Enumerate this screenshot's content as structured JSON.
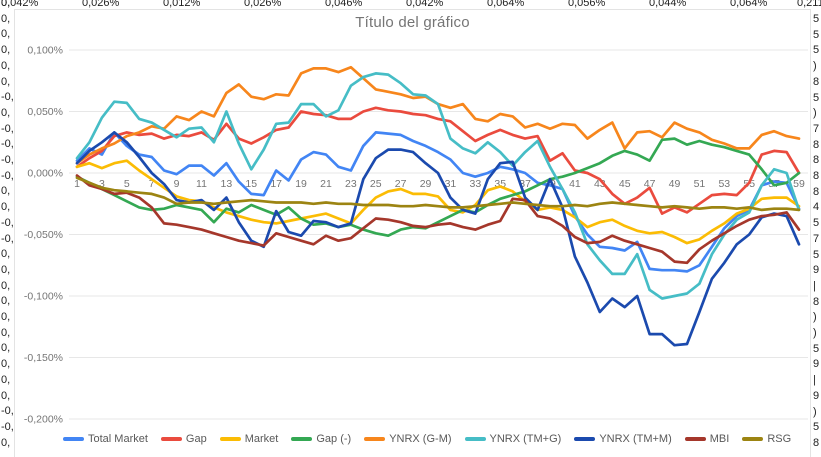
{
  "spreadsheet": {
    "top_row_labels": [
      "0,042%",
      "0,026%",
      "0,012%",
      "0,026%",
      "0,046%",
      "0,042%",
      "0,064%",
      "0,056%",
      "0,044%",
      "0,064%",
      "0,211"
    ],
    "left_column_labels": [
      "0,",
      "0,",
      "0,",
      "0,",
      "0,",
      "0,",
      "-0,",
      "0,",
      "-0,",
      "-0,",
      "-0,",
      "-0,",
      "0,",
      "0,",
      "-0,",
      "-0,",
      "0,",
      "0,",
      "0,",
      "0,",
      "0,",
      "0,",
      "0,",
      "0,",
      "0,",
      "0,",
      "-0,",
      "-0,",
      "0,"
    ],
    "right_edge_fragments": [
      "5",
      "5",
      "5",
      ")",
      "8",
      "5",
      ")",
      "7",
      "8",
      "8",
      "8",
      "8",
      "4",
      "5",
      "7",
      "5",
      "9",
      "|",
      "8",
      ")",
      ")",
      "5",
      "9",
      "|",
      "9",
      ")",
      "5",
      "8"
    ]
  },
  "chart": {
    "title": "Título del gráfico",
    "title_color": "#757575",
    "axis_text_color": "#757575",
    "gridline_color": "#e7e7e7"
  },
  "chart_data": {
    "type": "line",
    "title": "Título del gráfico",
    "xlabel": "",
    "ylabel": "",
    "x_range": [
      1,
      59
    ],
    "x_tick_values": [
      1,
      3,
      5,
      7,
      9,
      11,
      13,
      15,
      17,
      19,
      21,
      23,
      25,
      27,
      29,
      31,
      33,
      35,
      37,
      39,
      41,
      43,
      45,
      47,
      49,
      51,
      53,
      55,
      57,
      59
    ],
    "y_ticks": [
      0.1,
      0.05,
      0.0,
      -0.05,
      -0.1,
      -0.15,
      -0.2
    ],
    "y_tick_labels": [
      "0,100%",
      "0,050%",
      "0,000%",
      "-0,050%",
      "-0,100%",
      "-0,150%",
      "-0,200%"
    ],
    "ylim": [
      -0.2,
      0.1
    ],
    "y_unit": "percent",
    "grid": true,
    "legend_position": "bottom",
    "series": [
      {
        "name": "Total Market",
        "color": "#4285F4",
        "values": [
          0.01,
          0.02,
          0.015,
          0.033,
          0.022,
          0.015,
          0.013,
          0.002,
          -0.001,
          0.006,
          0.006,
          -0.002,
          0.008,
          -0.007,
          -0.017,
          -0.018,
          0.002,
          -0.006,
          0.011,
          0.017,
          0.015,
          0.005,
          0.002,
          0.022,
          0.033,
          0.032,
          0.031,
          0.026,
          0.022,
          0.017,
          0.011,
          0.0,
          -0.003,
          0.0,
          0.005,
          0.003,
          0.0,
          -0.008,
          -0.01,
          -0.013,
          -0.035,
          -0.05,
          -0.06,
          -0.061,
          -0.063,
          -0.056,
          -0.078,
          -0.079,
          -0.079,
          -0.08,
          -0.075,
          -0.06,
          -0.045,
          -0.035,
          -0.03,
          -0.01,
          -0.007,
          -0.008,
          -0.029
        ]
      },
      {
        "name": "Gap",
        "color": "#EA4B3E",
        "values": [
          0.005,
          0.012,
          0.018,
          0.03,
          0.033,
          0.031,
          0.032,
          0.028,
          0.031,
          0.03,
          0.033,
          0.027,
          0.04,
          0.028,
          0.024,
          0.029,
          0.035,
          0.037,
          0.05,
          0.048,
          0.047,
          0.044,
          0.044,
          0.05,
          0.053,
          0.051,
          0.05,
          0.048,
          0.047,
          0.044,
          0.042,
          0.034,
          0.026,
          0.031,
          0.035,
          0.031,
          0.028,
          0.03,
          0.01,
          0.016,
          0.002,
          0.0,
          -0.005,
          -0.017,
          -0.025,
          -0.02,
          -0.012,
          -0.033,
          -0.028,
          -0.032,
          -0.025,
          -0.018,
          -0.017,
          -0.018,
          -0.008,
          0.015,
          0.018,
          0.017,
          0.0
        ]
      },
      {
        "name": "Market",
        "color": "#FBBC04",
        "values": [
          0.005,
          0.008,
          0.004,
          0.008,
          0.01,
          0.002,
          -0.005,
          -0.012,
          -0.019,
          -0.022,
          -0.023,
          -0.028,
          -0.032,
          -0.035,
          -0.038,
          -0.04,
          -0.041,
          -0.039,
          -0.037,
          -0.035,
          -0.033,
          -0.037,
          -0.041,
          -0.03,
          -0.02,
          -0.015,
          -0.013,
          -0.017,
          -0.017,
          -0.019,
          -0.03,
          -0.032,
          -0.026,
          -0.014,
          -0.011,
          -0.015,
          -0.023,
          -0.03,
          -0.028,
          -0.03,
          -0.036,
          -0.044,
          -0.04,
          -0.038,
          -0.043,
          -0.047,
          -0.049,
          -0.048,
          -0.052,
          -0.057,
          -0.054,
          -0.047,
          -0.041,
          -0.033,
          -0.029,
          -0.021,
          -0.02,
          -0.02,
          -0.027
        ]
      },
      {
        "name": "Gap (-)",
        "color": "#34A853",
        "values": [
          -0.003,
          -0.008,
          -0.013,
          -0.018,
          -0.023,
          -0.028,
          -0.03,
          -0.029,
          -0.026,
          -0.028,
          -0.03,
          -0.04,
          -0.029,
          -0.032,
          -0.026,
          -0.03,
          -0.034,
          -0.028,
          -0.037,
          -0.042,
          -0.041,
          -0.044,
          -0.042,
          -0.046,
          -0.049,
          -0.051,
          -0.046,
          -0.044,
          -0.045,
          -0.04,
          -0.035,
          -0.03,
          -0.032,
          -0.026,
          -0.021,
          -0.018,
          -0.015,
          -0.01,
          -0.005,
          -0.003,
          0.0,
          0.004,
          0.008,
          0.014,
          0.018,
          0.015,
          0.01,
          0.027,
          0.028,
          0.023,
          0.026,
          0.023,
          0.021,
          0.018,
          0.015,
          0.003,
          -0.01,
          -0.008,
          0.0
        ]
      },
      {
        "name": "YNRX (G-M)",
        "color": "#F7861C",
        "values": [
          0.008,
          0.015,
          0.02,
          0.024,
          0.03,
          0.033,
          0.038,
          0.036,
          0.046,
          0.043,
          0.05,
          0.046,
          0.065,
          0.072,
          0.062,
          0.06,
          0.064,
          0.063,
          0.081,
          0.085,
          0.085,
          0.082,
          0.086,
          0.077,
          0.068,
          0.066,
          0.064,
          0.061,
          0.062,
          0.056,
          0.053,
          0.056,
          0.044,
          0.042,
          0.048,
          0.046,
          0.037,
          0.04,
          0.036,
          0.04,
          0.039,
          0.028,
          0.035,
          0.041,
          0.02,
          0.033,
          0.034,
          0.029,
          0.041,
          0.036,
          0.033,
          0.027,
          0.024,
          0.02,
          0.02,
          0.031,
          0.034,
          0.03,
          0.028
        ]
      },
      {
        "name": "YNRX (TM+G)",
        "color": "#46BDC6",
        "values": [
          0.012,
          0.025,
          0.045,
          0.058,
          0.057,
          0.044,
          0.041,
          0.035,
          0.029,
          0.036,
          0.037,
          0.025,
          0.05,
          0.024,
          0.003,
          0.019,
          0.04,
          0.041,
          0.056,
          0.056,
          0.046,
          0.051,
          0.071,
          0.078,
          0.081,
          0.08,
          0.073,
          0.064,
          0.063,
          0.056,
          0.028,
          0.02,
          0.016,
          0.025,
          0.017,
          0.006,
          0.017,
          0.026,
          0.005,
          -0.013,
          -0.032,
          -0.058,
          -0.071,
          -0.082,
          -0.082,
          -0.066,
          -0.095,
          -0.102,
          -0.1,
          -0.098,
          -0.09,
          -0.066,
          -0.05,
          -0.038,
          -0.032,
          -0.01,
          0.003,
          0.0,
          -0.03
        ]
      },
      {
        "name": "YNRX (TM+M)",
        "color": "#1B4AAE",
        "values": [
          0.008,
          0.018,
          0.025,
          0.033,
          0.025,
          0.013,
          0.0,
          -0.009,
          -0.022,
          -0.024,
          -0.022,
          -0.03,
          -0.02,
          -0.04,
          -0.055,
          -0.06,
          -0.031,
          -0.048,
          -0.051,
          -0.039,
          -0.04,
          -0.044,
          -0.041,
          -0.005,
          0.012,
          0.019,
          0.019,
          0.017,
          0.008,
          0.0,
          -0.02,
          -0.03,
          -0.033,
          -0.005,
          0.008,
          0.009,
          -0.02,
          -0.03,
          -0.005,
          -0.028,
          -0.068,
          -0.089,
          -0.113,
          -0.102,
          -0.109,
          -0.1,
          -0.131,
          -0.131,
          -0.14,
          -0.139,
          -0.113,
          -0.086,
          -0.073,
          -0.058,
          -0.05,
          -0.036,
          -0.033,
          -0.035,
          -0.058
        ]
      },
      {
        "name": "MBI",
        "color": "#A5372B",
        "values": [
          -0.002,
          -0.01,
          -0.013,
          -0.017,
          -0.016,
          -0.02,
          -0.028,
          -0.041,
          -0.042,
          -0.044,
          -0.046,
          -0.049,
          -0.052,
          -0.055,
          -0.057,
          -0.059,
          -0.049,
          -0.052,
          -0.055,
          -0.058,
          -0.051,
          -0.055,
          -0.053,
          -0.045,
          -0.037,
          -0.038,
          -0.04,
          -0.043,
          -0.044,
          -0.042,
          -0.041,
          -0.044,
          -0.046,
          -0.042,
          -0.039,
          -0.021,
          -0.022,
          -0.035,
          -0.037,
          -0.043,
          -0.052,
          -0.057,
          -0.056,
          -0.051,
          -0.055,
          -0.058,
          -0.061,
          -0.064,
          -0.072,
          -0.073,
          -0.062,
          -0.055,
          -0.049,
          -0.043,
          -0.038,
          -0.035,
          -0.034,
          -0.032,
          -0.046
        ]
      },
      {
        "name": "RSG",
        "color": "#9C8412",
        "values": [
          -0.004,
          -0.008,
          -0.012,
          -0.014,
          -0.015,
          -0.016,
          -0.017,
          -0.02,
          -0.025,
          -0.024,
          -0.024,
          -0.025,
          -0.024,
          -0.023,
          -0.022,
          -0.023,
          -0.024,
          -0.024,
          -0.024,
          -0.025,
          -0.024,
          -0.025,
          -0.025,
          -0.026,
          -0.026,
          -0.026,
          -0.027,
          -0.027,
          -0.026,
          -0.027,
          -0.028,
          -0.028,
          -0.027,
          -0.026,
          -0.025,
          -0.024,
          -0.025,
          -0.026,
          -0.027,
          -0.027,
          -0.026,
          -0.027,
          -0.025,
          -0.024,
          -0.025,
          -0.026,
          -0.027,
          -0.028,
          -0.027,
          -0.028,
          -0.029,
          -0.028,
          -0.028,
          -0.029,
          -0.028,
          -0.03,
          -0.029,
          -0.029,
          -0.03
        ]
      }
    ]
  }
}
